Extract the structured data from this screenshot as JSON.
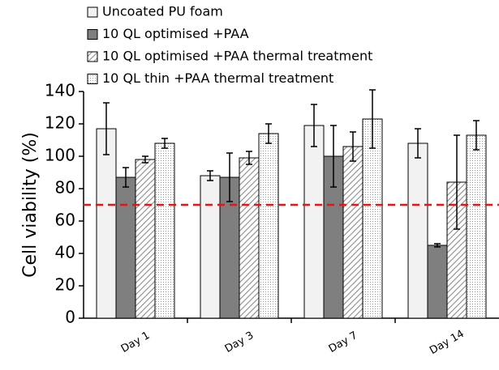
{
  "chart_data": {
    "type": "bar",
    "y_label": "Cell viability (%)",
    "categories": [
      "Day 1",
      "Day 3",
      "Day 7",
      "Day 14"
    ],
    "series": [
      {
        "name": "Uncoated PU foam",
        "color": "#f2f2f2",
        "pattern": "solid",
        "values": [
          117,
          88,
          119,
          108
        ],
        "errors": [
          16,
          3,
          13,
          9
        ]
      },
      {
        "name": "10 QL optimised +PAA",
        "color": "#7f7f7f",
        "pattern": "solid",
        "values": [
          87,
          87,
          100,
          45
        ],
        "errors": [
          6,
          15,
          19,
          1
        ]
      },
      {
        "name": "10 QL optimised +PAA thermal treatment",
        "color": "#8c8c8c",
        "pattern": "hatch",
        "values": [
          98,
          99,
          106,
          84
        ],
        "errors": [
          2,
          4,
          9,
          29
        ]
      },
      {
        "name": "10 QL thin +PAA thermal treatment",
        "color": "#9a9a9a",
        "pattern": "dots",
        "values": [
          108,
          114,
          123,
          113
        ],
        "errors": [
          3,
          6,
          18,
          9
        ]
      }
    ],
    "threshold": 70,
    "threshold_color": "#ee1111",
    "ylim": [
      0,
      140
    ],
    "yticks": [
      0,
      20,
      40,
      60,
      80,
      100,
      120,
      140
    ]
  }
}
